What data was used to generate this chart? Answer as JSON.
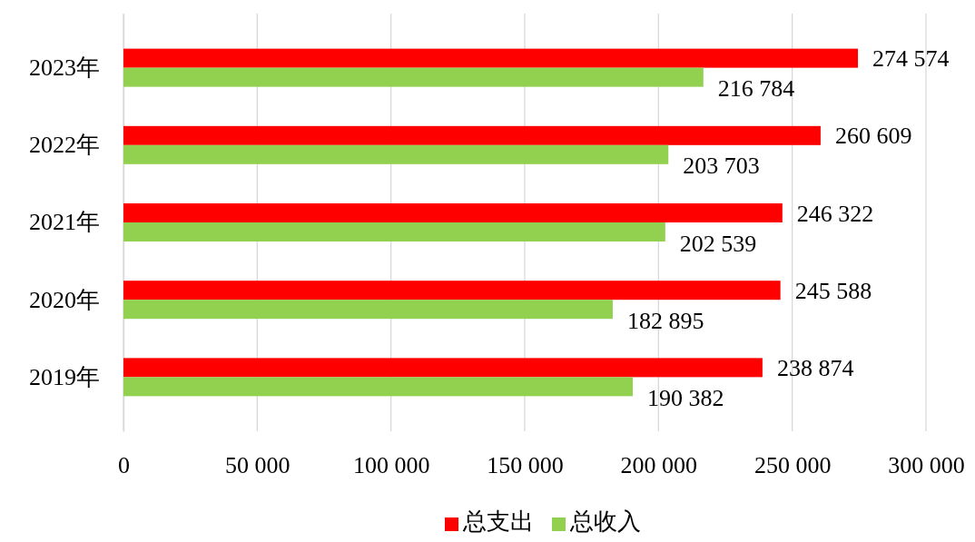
{
  "chart_data": {
    "type": "bar",
    "orientation": "horizontal",
    "categories": [
      "2023年",
      "2022年",
      "2021年",
      "2020年",
      "2019年"
    ],
    "series": [
      {
        "name": "总支出",
        "color": "#ff0000",
        "values": [
          274574,
          260609,
          246322,
          245588,
          238874
        ],
        "value_labels": [
          "274 574",
          "260 609",
          "246 322",
          "245 588",
          "238 874"
        ]
      },
      {
        "name": "总收入",
        "color": "#92d050",
        "values": [
          216784,
          203703,
          202539,
          182895,
          190382
        ],
        "value_labels": [
          "216 784",
          "203 703",
          "202 539",
          "182 895",
          "190 382"
        ]
      }
    ],
    "xlim": [
      0,
      300000
    ],
    "xticks": [
      0,
      {
        "value": 50000,
        "label": "50 000"
      },
      {
        "value": 100000,
        "label": "100 000"
      },
      {
        "value": 150000,
        "label": "150 000"
      },
      {
        "value": 200000,
        "label": "200 000"
      },
      {
        "value": 250000,
        "label": "250 000"
      },
      {
        "value": 300000,
        "label": "300 000"
      }
    ],
    "grid": "x",
    "legend": "bottom"
  }
}
